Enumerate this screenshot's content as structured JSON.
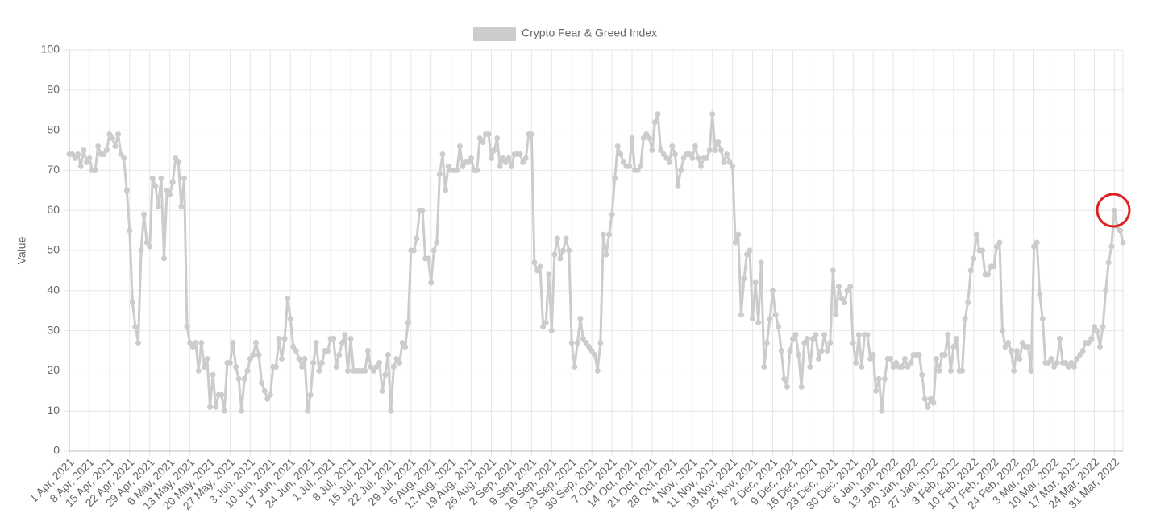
{
  "chart_data": {
    "type": "line",
    "y_label": "Value",
    "legend": "top",
    "grid": true,
    "ylim": [
      0,
      100
    ],
    "yticks": [
      0,
      10,
      20,
      30,
      40,
      50,
      60,
      70,
      80,
      90,
      100
    ],
    "categories": [
      "1 Apr, 2021",
      null,
      null,
      null,
      null,
      null,
      null,
      "8 Apr, 2021",
      null,
      null,
      null,
      null,
      null,
      null,
      "15 Apr, 2021",
      null,
      null,
      null,
      null,
      null,
      null,
      "22 Apr, 2021",
      null,
      null,
      null,
      null,
      null,
      null,
      "29 Apr, 2021",
      null,
      null,
      null,
      null,
      null,
      null,
      "6 May, 2021",
      null,
      null,
      null,
      null,
      null,
      null,
      "13 May, 2021",
      null,
      null,
      null,
      null,
      null,
      null,
      "20 May, 2021",
      null,
      null,
      null,
      null,
      null,
      null,
      "27 May, 2021",
      null,
      null,
      null,
      null,
      null,
      null,
      "3 Jun, 2021",
      null,
      null,
      null,
      null,
      null,
      null,
      "10 Jun, 2021",
      null,
      null,
      null,
      null,
      null,
      null,
      "17 Jun, 2021",
      null,
      null,
      null,
      null,
      null,
      null,
      "24 Jun, 2021",
      null,
      null,
      null,
      null,
      null,
      null,
      "1 Jul, 2021",
      null,
      null,
      null,
      null,
      null,
      null,
      "8 Jul, 2021",
      null,
      null,
      null,
      null,
      null,
      null,
      "15 Jul, 2021",
      null,
      null,
      null,
      null,
      null,
      null,
      "22 Jul, 2021",
      null,
      null,
      null,
      null,
      null,
      null,
      "29 Jul, 2021",
      null,
      null,
      null,
      null,
      null,
      null,
      "5 Aug, 2021",
      null,
      null,
      null,
      null,
      null,
      null,
      "12 Aug, 2021",
      null,
      null,
      null,
      null,
      null,
      null,
      "19 Aug, 2021",
      null,
      null,
      null,
      null,
      null,
      null,
      "26 Aug, 2021",
      null,
      null,
      null,
      null,
      null,
      null,
      "2 Sep, 2021",
      null,
      null,
      null,
      null,
      null,
      null,
      "9 Sep, 2021",
      null,
      null,
      null,
      null,
      null,
      null,
      "16 Sep, 2021",
      null,
      null,
      null,
      null,
      null,
      null,
      "23 Sep, 2021",
      null,
      null,
      null,
      null,
      null,
      null,
      "30 Sep, 2021",
      null,
      null,
      null,
      null,
      null,
      null,
      "7 Oct, 2021",
      null,
      null,
      null,
      null,
      null,
      null,
      "14 Oct, 2021",
      null,
      null,
      null,
      null,
      null,
      null,
      "21 Oct, 2021",
      null,
      null,
      null,
      null,
      null,
      null,
      "28 Oct, 2021",
      null,
      null,
      null,
      null,
      null,
      null,
      "4 Nov, 2021",
      null,
      null,
      null,
      null,
      null,
      null,
      "11 Nov, 2021",
      null,
      null,
      null,
      null,
      null,
      null,
      "18 Nov, 2021",
      null,
      null,
      null,
      null,
      null,
      null,
      "25 Nov, 2021",
      null,
      null,
      null,
      null,
      null,
      null,
      "2 Dec, 2021",
      null,
      null,
      null,
      null,
      null,
      null,
      "9 Dec, 2021",
      null,
      null,
      null,
      null,
      null,
      null,
      "16 Dec, 2021",
      null,
      null,
      null,
      null,
      null,
      null,
      "23 Dec, 2021",
      null,
      null,
      null,
      null,
      null,
      null,
      "30 Dec, 2021",
      null,
      null,
      null,
      null,
      null,
      null,
      "6 Jan, 2022",
      null,
      null,
      null,
      null,
      null,
      null,
      "13 Jan, 2022",
      null,
      null,
      null,
      null,
      null,
      null,
      "20 Jan, 2022",
      null,
      null,
      null,
      null,
      null,
      null,
      "27 Jan, 2022",
      null,
      null,
      null,
      null,
      null,
      null,
      "3 Feb, 2022",
      null,
      null,
      null,
      null,
      null,
      null,
      "10 Feb, 2022",
      null,
      null,
      null,
      null,
      null,
      null,
      "17 Feb, 2022",
      null,
      null,
      null,
      null,
      null,
      null,
      "24 Feb, 2022",
      null,
      null,
      null,
      null,
      null,
      null,
      "3 Mar, 2022",
      null,
      null,
      null,
      null,
      null,
      null,
      "10 Mar, 2022",
      null,
      null,
      null,
      null,
      null,
      null,
      "17 Mar, 2022",
      null,
      null,
      null,
      null,
      null,
      null,
      "24 Mar, 2022",
      null,
      null,
      null,
      null,
      null,
      null,
      "31 Mar, 2022",
      null,
      null,
      null
    ],
    "series": [
      {
        "name": "Crypto Fear & Greed Index",
        "color": "#cccccc",
        "values": [
          74,
          74,
          73,
          74,
          71,
          75,
          72,
          73,
          70,
          70,
          76,
          74,
          74,
          75,
          79,
          78,
          76,
          79,
          74,
          73,
          65,
          55,
          37,
          31,
          27,
          50,
          59,
          52,
          51,
          68,
          66,
          61,
          68,
          48,
          65,
          64,
          67,
          73,
          72,
          61,
          68,
          31,
          27,
          26,
          27,
          20,
          27,
          21,
          23,
          11,
          19,
          11,
          14,
          14,
          10,
          22,
          22,
          27,
          21,
          18,
          10,
          18,
          20,
          23,
          24,
          27,
          24,
          17,
          15,
          13,
          14,
          21,
          21,
          28,
          23,
          28,
          38,
          33,
          26,
          25,
          23,
          21,
          23,
          10,
          14,
          22,
          27,
          20,
          22,
          25,
          25,
          28,
          28,
          21,
          24,
          27,
          29,
          20,
          28,
          20,
          20,
          20,
          20,
          20,
          25,
          21,
          20,
          21,
          22,
          15,
          19,
          24,
          10,
          21,
          23,
          22,
          27,
          26,
          32,
          50,
          50,
          53,
          60,
          60,
          48,
          48,
          42,
          50,
          52,
          69,
          74,
          65,
          71,
          70,
          70,
          70,
          76,
          71,
          72,
          72,
          73,
          70,
          70,
          78,
          77,
          79,
          79,
          73,
          75,
          78,
          71,
          73,
          72,
          73,
          71,
          74,
          74,
          74,
          72,
          73,
          79,
          79,
          47,
          45,
          46,
          31,
          32,
          44,
          30,
          49,
          53,
          48,
          50,
          53,
          50,
          27,
          21,
          27,
          33,
          28,
          27,
          26,
          25,
          24,
          20,
          27,
          54,
          49,
          54,
          59,
          68,
          76,
          74,
          72,
          71,
          71,
          78,
          70,
          70,
          71,
          78,
          79,
          78,
          75,
          82,
          84,
          75,
          74,
          73,
          72,
          76,
          74,
          66,
          70,
          73,
          74,
          74,
          73,
          76,
          73,
          71,
          73,
          73,
          75,
          84,
          75,
          77,
          75,
          72,
          74,
          72,
          71,
          52,
          54,
          34,
          43,
          49,
          50,
          33,
          42,
          32,
          47,
          21,
          27,
          33,
          40,
          34,
          31,
          25,
          18,
          16,
          25,
          28,
          29,
          24,
          16,
          27,
          28,
          21,
          28,
          29,
          23,
          25,
          29,
          25,
          27,
          45,
          34,
          41,
          38,
          37,
          40,
          41,
          27,
          22,
          29,
          21,
          29,
          29,
          23,
          24,
          15,
          18,
          10,
          18,
          23,
          23,
          21,
          22,
          21,
          21,
          23,
          21,
          22,
          24,
          24,
          24,
          19,
          13,
          11,
          13,
          12,
          23,
          20,
          24,
          24,
          29,
          20,
          26,
          28,
          20,
          20,
          33,
          37,
          45,
          48,
          54,
          50,
          50,
          44,
          44,
          46,
          46,
          51,
          52,
          30,
          26,
          27,
          25,
          20,
          25,
          23,
          27,
          26,
          26,
          20,
          51,
          52,
          39,
          33,
          22,
          22,
          23,
          21,
          22,
          28,
          22,
          22,
          21,
          22,
          21,
          23,
          24,
          25,
          27,
          27,
          28,
          31,
          30,
          26,
          31,
          40,
          47,
          51,
          60,
          56,
          55,
          52
        ]
      }
    ]
  }
}
